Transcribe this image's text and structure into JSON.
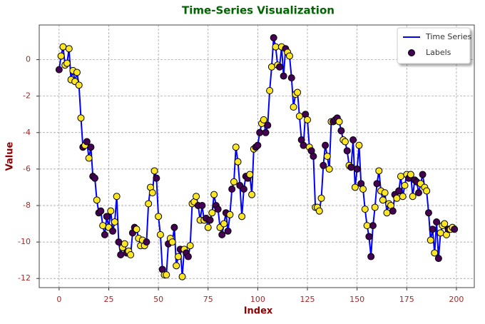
{
  "chart_data": {
    "type": "line",
    "title": "Time-Series Visualization",
    "x_label": "Index",
    "y_label": "Value",
    "x": [
      0,
      1,
      2,
      3,
      4,
      5,
      6,
      7,
      8,
      9,
      10,
      11,
      12,
      13,
      14,
      15,
      16,
      17,
      18,
      19,
      20,
      21,
      22,
      23,
      24,
      25,
      26,
      27,
      28,
      29,
      30,
      31,
      32,
      33,
      34,
      35,
      36,
      37,
      38,
      39,
      40,
      41,
      42,
      43,
      44,
      45,
      46,
      47,
      48,
      49,
      50,
      51,
      52,
      53,
      54,
      55,
      56,
      57,
      58,
      59,
      60,
      61,
      62,
      63,
      64,
      65,
      66,
      67,
      68,
      69,
      70,
      71,
      72,
      73,
      74,
      75,
      76,
      77,
      78,
      79,
      80,
      81,
      82,
      83,
      84,
      85,
      86,
      87,
      88,
      89,
      90,
      91,
      92,
      93,
      94,
      95,
      96,
      97,
      98,
      99,
      100,
      101,
      102,
      103,
      104,
      105,
      106,
      107,
      108,
      109,
      110,
      111,
      112,
      113,
      114,
      115,
      116,
      117,
      118,
      119,
      120,
      121,
      122,
      123,
      124,
      125,
      126,
      127,
      128,
      129,
      130,
      131,
      132,
      133,
      134,
      135,
      136,
      137,
      138,
      139,
      140,
      141,
      142,
      143,
      144,
      145,
      146,
      147,
      148,
      149,
      150,
      151,
      152,
      153,
      154,
      155,
      156,
      157,
      158,
      159,
      160,
      161,
      162,
      163,
      164,
      165,
      166,
      167,
      168,
      169,
      170,
      171,
      172,
      173,
      174,
      175,
      176,
      177,
      178,
      179,
      180,
      181,
      182,
      183,
      184,
      185,
      186,
      187,
      188,
      189,
      190,
      191,
      192,
      193,
      194,
      195,
      196,
      197,
      198,
      199
    ],
    "values": [
      -0.55,
      0.2,
      0.7,
      -0.3,
      -0.2,
      0.6,
      -1.1,
      -0.6,
      -1.2,
      -0.7,
      -1.4,
      -3.2,
      -4.8,
      -4.7,
      -4.5,
      -5.4,
      -4.8,
      -6.4,
      -6.5,
      -7.7,
      -8.4,
      -8.3,
      -9.1,
      -9.6,
      -8.6,
      -9.2,
      -8.3,
      -9.4,
      -8.9,
      -7.5,
      -10.0,
      -10.7,
      -10.3,
      -10.1,
      -10.6,
      -10.5,
      -10.7,
      -9.5,
      -9.2,
      -9.3,
      -9.8,
      -10.2,
      -9.9,
      -10.2,
      -10.0,
      -7.9,
      -7.0,
      -7.3,
      -6.1,
      -6.5,
      -8.6,
      -9.6,
      -11.5,
      -11.8,
      -11.8,
      -10.1,
      -9.8,
      -10.0,
      -9.2,
      -11.3,
      -10.8,
      -10.4,
      -11.9,
      -10.4,
      -10.6,
      -10.8,
      -10.2,
      -7.9,
      -7.8,
      -7.5,
      -8.0,
      -8.8,
      -8.0,
      -8.8,
      -8.7,
      -9.2,
      -8.8,
      -8.4,
      -7.4,
      -8.0,
      -8.2,
      -9.2,
      -9.6,
      -9.0,
      -8.4,
      -9.4,
      -8.5,
      -7.1,
      -6.7,
      -4.8,
      -5.6,
      -6.9,
      -8.6,
      -7.1,
      -6.4,
      -6.5,
      -6.3,
      -7.4,
      -4.9,
      -4.8,
      -4.7,
      -4.0,
      -3.5,
      -3.3,
      -4.0,
      -3.6,
      -1.7,
      -0.4,
      1.2,
      0.7,
      -0.3,
      -0.4,
      0.7,
      -0.9,
      0.6,
      0.4,
      0.2,
      -1.0,
      -2.6,
      -1.9,
      -1.8,
      -3.1,
      -4.4,
      -4.7,
      -3.0,
      -3.3,
      -4.8,
      -5.0,
      -5.3,
      -8.1,
      -8.1,
      -8.3,
      -7.6,
      -5.8,
      -4.7,
      -5.3,
      -6.0,
      -3.4,
      -3.4,
      -3.3,
      -3.2,
      -3.4,
      -3.9,
      -4.4,
      -4.5,
      -5.0,
      -5.8,
      -5.9,
      -4.4,
      -7.0,
      -6.0,
      -4.7,
      -6.8,
      -7.1,
      -8.2,
      -9.1,
      -9.7,
      -10.8,
      -9.1,
      -8.1,
      -6.8,
      -6.1,
      -7.2,
      -7.7,
      -7.3,
      -8.4,
      -7.9,
      -8.0,
      -8.3,
      -7.4,
      -7.6,
      -7.2,
      -6.4,
      -7.5,
      -6.9,
      -6.3,
      -6.5,
      -6.3,
      -7.5,
      -6.6,
      -6.7,
      -7.3,
      -6.8,
      -6.3,
      -7.0,
      -7.2,
      -8.4,
      -9.9,
      -9.3,
      -10.6,
      -8.9,
      -10.9,
      -9.5,
      -9.1,
      -9.0,
      -9.6,
      -9.3,
      -9.3,
      -9.2,
      -9.3
    ],
    "labels": [
      0,
      1,
      1,
      1,
      1,
      1,
      1,
      1,
      1,
      1,
      1,
      1,
      0,
      1,
      0,
      1,
      0,
      0,
      0,
      1,
      0,
      0,
      1,
      0,
      0,
      1,
      1,
      0,
      1,
      1,
      0,
      0,
      1,
      1,
      0,
      1,
      1,
      0,
      0,
      1,
      1,
      1,
      1,
      1,
      0,
      1,
      1,
      1,
      1,
      0,
      1,
      1,
      0,
      1,
      1,
      0,
      1,
      1,
      0,
      1,
      1,
      0,
      1,
      1,
      0,
      0,
      1,
      1,
      1,
      1,
      0,
      1,
      0,
      1,
      0,
      1,
      0,
      1,
      1,
      0,
      0,
      1,
      0,
      1,
      0,
      0,
      1,
      0,
      1,
      1,
      1,
      0,
      1,
      0,
      0,
      0,
      1,
      1,
      1,
      0,
      0,
      0,
      1,
      1,
      0,
      0,
      1,
      1,
      0,
      1,
      1,
      0,
      1,
      0,
      0,
      1,
      1,
      0,
      1,
      1,
      1,
      1,
      0,
      0,
      0,
      1,
      1,
      0,
      0,
      1,
      1,
      1,
      1,
      0,
      0,
      1,
      1,
      1,
      0,
      0,
      0,
      1,
      0,
      1,
      1,
      0,
      1,
      0,
      0,
      1,
      0,
      1,
      0,
      1,
      1,
      1,
      0,
      0,
      0,
      1,
      0,
      1,
      1,
      1,
      1,
      1,
      1,
      1,
      0,
      0,
      1,
      0,
      1,
      1,
      1,
      1,
      0,
      1,
      1,
      0,
      0,
      0,
      1,
      0,
      1,
      1,
      0,
      1,
      0,
      1,
      0,
      0,
      1,
      1,
      1,
      1,
      0,
      1,
      1,
      0
    ],
    "label_colors": [
      "#440154",
      "#fde725"
    ],
    "series": [
      {
        "name": "Time Series",
        "color": "#0000ff",
        "kind": "line"
      },
      {
        "name": "Labels",
        "color": "#440154",
        "kind": "scatter"
      }
    ],
    "xlim": [
      -10,
      209
    ],
    "xticks": [
      0,
      25,
      50,
      75,
      100,
      125,
      150,
      175,
      200
    ],
    "ylim": [
      -12.5,
      1.9
    ],
    "yticks": [
      0,
      -2,
      -4,
      -6,
      -8,
      -10,
      -12
    ],
    "grid": true,
    "legend": "upper right"
  }
}
